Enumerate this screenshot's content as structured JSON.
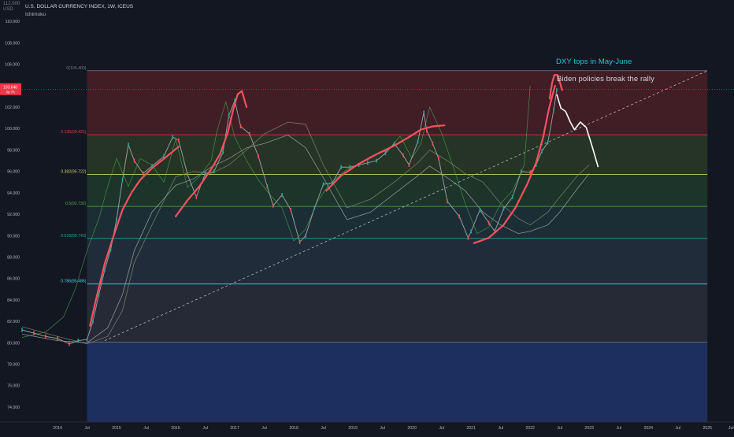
{
  "header": {
    "symbol_line": "U.S. DOLLAR CURRENCY INDEX, 1W, ICEUS",
    "indicator": "Ichimoku",
    "currency_label": "USD",
    "top_price_label": "112.000"
  },
  "annotations": {
    "headline": "DXY tops in May-June",
    "subline": "Biden policies break the rally",
    "headline_color": "#26c6da",
    "subline_color": "#d1d4dc"
  },
  "last_price_tag": {
    "price": "103.640",
    "sub": "3d 7h",
    "color": "#f23645"
  },
  "chart_data": {
    "type": "line",
    "title": "U.S. DOLLAR CURRENCY INDEX, 1W, ICEUS",
    "xlabel": "",
    "ylabel": "",
    "ylim": [
      72.6,
      112.0
    ],
    "xlim": [
      2013.4,
      2025.45
    ],
    "y_ticks": [
      "74.000",
      "76.000",
      "78.000",
      "80.000",
      "82.000",
      "84.000",
      "86.000",
      "88.000",
      "90.000",
      "92.000",
      "94.000",
      "96.000",
      "98.000",
      "100.000",
      "102.000",
      "104.000",
      "106.000",
      "108.000",
      "110.000"
    ],
    "x_ticks": [
      {
        "x": 2014.0,
        "label": "2014"
      },
      {
        "x": 2014.5,
        "label": "Jul"
      },
      {
        "x": 2015.0,
        "label": "2015"
      },
      {
        "x": 2015.5,
        "label": "Jul"
      },
      {
        "x": 2016.0,
        "label": "2016"
      },
      {
        "x": 2016.5,
        "label": "Jul"
      },
      {
        "x": 2017.0,
        "label": "2017"
      },
      {
        "x": 2017.5,
        "label": "Jul"
      },
      {
        "x": 2018.0,
        "label": "2018"
      },
      {
        "x": 2018.5,
        "label": "Jul"
      },
      {
        "x": 2019.0,
        "label": "2019"
      },
      {
        "x": 2019.5,
        "label": "Jul"
      },
      {
        "x": 2020.0,
        "label": "2020"
      },
      {
        "x": 2020.5,
        "label": "Jul"
      },
      {
        "x": 2021.0,
        "label": "2021"
      },
      {
        "x": 2021.5,
        "label": "Jul"
      },
      {
        "x": 2022.0,
        "label": "2022"
      },
      {
        "x": 2022.5,
        "label": "Jul"
      },
      {
        "x": 2023.0,
        "label": "2023"
      },
      {
        "x": 2023.5,
        "label": "Jul"
      },
      {
        "x": 2024.0,
        "label": "2024"
      },
      {
        "x": 2024.5,
        "label": "Jul"
      },
      {
        "x": 2025.0,
        "label": "2025"
      },
      {
        "x": 2025.4,
        "label": "Jul"
      }
    ],
    "fibonacci": {
      "x_start": 2014.5,
      "x_end": 2025.0,
      "levels": [
        {
          "ratio": "0",
          "price": 105.4,
          "label": "0(105.400)",
          "color": "#787b86",
          "fill": "#4a1f27"
        },
        {
          "ratio": "0.236",
          "price": 99.421,
          "label": "0.236(99.421)",
          "color": "#f23645",
          "fill": "#4a1f27"
        },
        {
          "ratio": "0.382",
          "price": 95.722,
          "label": "0.382(95.722)",
          "color": "#c9d06b",
          "fill": "#2a3a26"
        },
        {
          "ratio": "0.5",
          "price": 92.732,
          "label": "0.5(92.732)",
          "color": "#4caf50",
          "fill": "#1f3a2c"
        },
        {
          "ratio": "0.618",
          "price": 89.743,
          "label": "0.618(89.743)",
          "color": "#26a69a",
          "fill": "#1d3238"
        },
        {
          "ratio": "0.786",
          "price": 85.486,
          "label": "0.786(85.486)",
          "color": "#4dd0e1",
          "fill": "#25303f"
        },
        {
          "ratio": "1",
          "price": 80.063,
          "label": "",
          "color": "#787b86",
          "fill": "#2a2e39"
        }
      ],
      "bottom_zone_fill": "#1c2f5e"
    },
    "series": [
      {
        "name": "",
        "color": "#9598a1",
        "x": [
          2013.4,
          2013.6,
          2013.8,
          2014.0,
          2014.2,
          2014.35,
          2014.5,
          2014.6,
          2014.7,
          2014.8,
          2014.9,
          2015.0,
          2015.1,
          2015.2,
          2015.3,
          2015.45,
          2015.6,
          2015.8,
          2015.95,
          2016.05,
          2016.2,
          2016.35,
          2016.5,
          2016.65,
          2016.8,
          2016.9,
          2017.0,
          2017.1,
          2017.25,
          2017.4,
          2017.55,
          2017.65,
          2017.8,
          2017.95,
          2018.1,
          2018.2,
          2018.35,
          2018.5,
          2018.65,
          2018.8,
          2018.95,
          2019.1,
          2019.25,
          2019.4,
          2019.55,
          2019.7,
          2019.85,
          2019.95,
          2020.1,
          2020.2,
          2020.25,
          2020.35,
          2020.45,
          2020.6,
          2020.8,
          2020.95,
          2021.0,
          2021.15,
          2021.3,
          2021.4,
          2021.55,
          2021.7,
          2021.85,
          2022.0,
          2022.1,
          2022.2,
          2022.3,
          2022.4,
          2022.45
        ],
        "y": [
          81.2,
          80.9,
          80.6,
          80.4,
          79.9,
          80.2,
          80.3,
          82.0,
          84.5,
          86.8,
          88.7,
          91.5,
          95.2,
          98.5,
          97.0,
          95.8,
          96.5,
          97.4,
          99.2,
          98.9,
          95.7,
          93.6,
          95.8,
          96.0,
          97.8,
          101.2,
          102.6,
          100.2,
          99.5,
          97.4,
          94.6,
          92.8,
          93.8,
          92.4,
          89.4,
          90.0,
          92.6,
          94.8,
          94.9,
          96.4,
          96.4,
          96.6,
          96.8,
          97.0,
          97.7,
          98.6,
          97.5,
          96.6,
          98.8,
          101.5,
          99.8,
          98.6,
          97.2,
          93.2,
          91.8,
          89.8,
          90.4,
          92.4,
          91.2,
          90.4,
          92.5,
          93.6,
          96.0,
          95.9,
          96.6,
          97.9,
          98.7,
          101.8,
          103.6
        ]
      },
      {
        "name": "",
        "color": "#ffffff",
        "x": [
          2022.45,
          2022.52,
          2022.6,
          2022.68,
          2022.75,
          2022.85,
          2022.95,
          2023.05,
          2023.15
        ],
        "y": [
          103.2,
          101.9,
          101.6,
          100.6,
          99.9,
          100.6,
          100.1,
          98.3,
          96.4
        ]
      }
    ],
    "trendline": {
      "x": [
        2014.8,
        2025.0
      ],
      "y": [
        80.2,
        105.4
      ],
      "color": "#b2b5be"
    },
    "red_arcs": [
      {
        "x": [
          2014.55,
          2014.65,
          2014.8,
          2014.95,
          2015.1,
          2015.25,
          2015.4,
          2015.6,
          2015.85,
          2016.05
        ],
        "y": [
          81.6,
          84.0,
          87.4,
          90.0,
          92.4,
          94.0,
          95.2,
          96.3,
          97.4,
          98.3
        ]
      },
      {
        "x": [
          2016.0,
          2016.2,
          2016.4,
          2016.6,
          2016.75,
          2016.88,
          2016.98,
          2017.05,
          2017.12,
          2017.2
        ],
        "y": [
          91.8,
          93.3,
          94.6,
          96.2,
          97.6,
          99.6,
          101.9,
          103.2,
          103.5,
          102.0
        ]
      },
      {
        "x": [
          2018.55,
          2018.8,
          2019.1,
          2019.4,
          2019.7,
          2019.95,
          2020.15,
          2020.35,
          2020.55
        ],
        "y": [
          94.2,
          95.6,
          96.7,
          97.6,
          98.4,
          99.2,
          99.9,
          100.2,
          100.3
        ]
      },
      {
        "x": [
          2021.05,
          2021.3,
          2021.55,
          2021.75,
          2021.95,
          2022.1,
          2022.22,
          2022.32,
          2022.42
        ],
        "y": [
          89.3,
          89.8,
          91.0,
          92.6,
          94.8,
          96.8,
          99.2,
          101.9,
          104.0
        ]
      },
      {
        "x": [
          2022.33,
          2022.37,
          2022.41,
          2022.46,
          2022.51,
          2022.54
        ],
        "y": [
          102.8,
          104.2,
          105.0,
          105.0,
          104.2,
          103.6
        ]
      }
    ],
    "ichimoku_lines": [
      {
        "name": "",
        "color": "#7e8a6b",
        "x": [
          2013.4,
          2014.0,
          2014.5,
          2014.85,
          2015.1,
          2015.3,
          2015.6,
          2016.0,
          2016.3,
          2016.6,
          2016.9,
          2017.2,
          2017.5,
          2017.9,
          2018.2,
          2018.5,
          2018.9,
          2019.3,
          2019.7,
          2020.1,
          2020.3,
          2020.6,
          2020.9,
          2021.2,
          2021.5,
          2021.8,
          2022.0,
          2022.3,
          2022.5,
          2022.8,
          2023.0
        ],
        "y": [
          81.5,
          80.6,
          79.9,
          80.6,
          83.0,
          87.5,
          91.0,
          95.5,
          96.0,
          95.8,
          96.6,
          98.0,
          99.5,
          100.6,
          100.4,
          96.6,
          92.6,
          93.4,
          95.0,
          96.8,
          98.0,
          97.0,
          95.8,
          95.0,
          93.0,
          91.6,
          91.0,
          92.2,
          93.6,
          95.6,
          96.6
        ]
      },
      {
        "name": "",
        "color": "#a0a3ab",
        "x": [
          2013.4,
          2014.0,
          2014.5,
          2014.85,
          2015.1,
          2015.3,
          2015.6,
          2016.0,
          2016.3,
          2016.6,
          2016.9,
          2017.2,
          2017.5,
          2017.9,
          2018.2,
          2018.5,
          2018.9,
          2019.3,
          2019.7,
          2020.1,
          2020.3,
          2020.6,
          2020.9,
          2021.2,
          2021.5,
          2021.8,
          2022.0,
          2022.3,
          2022.5,
          2022.8,
          2023.0
        ],
        "y": [
          80.8,
          80.2,
          80.0,
          81.4,
          84.5,
          88.6,
          92.2,
          94.7,
          95.3,
          96.4,
          97.2,
          98.2,
          98.6,
          99.4,
          98.2,
          95.4,
          91.5,
          92.2,
          93.9,
          95.6,
          96.5,
          95.4,
          94.2,
          92.2,
          91.0,
          90.2,
          90.4,
          91.0,
          92.2,
          94.4,
          95.8
        ]
      }
    ],
    "chikou_span": {
      "color": "#4caf50",
      "x": [
        2013.4,
        2013.8,
        2014.1,
        2014.3,
        2014.5,
        2014.7,
        2014.85,
        2015.0,
        2015.2,
        2015.4,
        2015.6,
        2015.8,
        2016.0,
        2016.2,
        2016.4,
        2016.6,
        2016.7,
        2016.85,
        2017.0,
        2017.2,
        2017.4,
        2017.6,
        2017.8,
        2018.0,
        2018.2,
        2018.4,
        2018.6,
        2018.9,
        2019.1,
        2019.3,
        2019.6,
        2019.8,
        2020.0,
        2020.15,
        2020.3,
        2020.5,
        2020.7,
        2020.9,
        2021.1,
        2021.3,
        2021.5,
        2021.7,
        2021.9,
        2022.0
      ],
      "y": [
        80.5,
        81.0,
        82.4,
        85.0,
        88.6,
        91.6,
        94.6,
        97.2,
        94.6,
        97.2,
        96.6,
        95.0,
        99.0,
        94.5,
        95.5,
        97.0,
        99.8,
        102.5,
        99.2,
        97.0,
        95.2,
        93.8,
        92.6,
        89.5,
        90.6,
        93.2,
        94.8,
        96.2,
        96.6,
        97.4,
        98.0,
        99.3,
        97.2,
        98.6,
        102.0,
        99.6,
        96.4,
        93.0,
        90.2,
        90.8,
        93.0,
        94.2,
        96.6,
        104.0
      ]
    }
  }
}
